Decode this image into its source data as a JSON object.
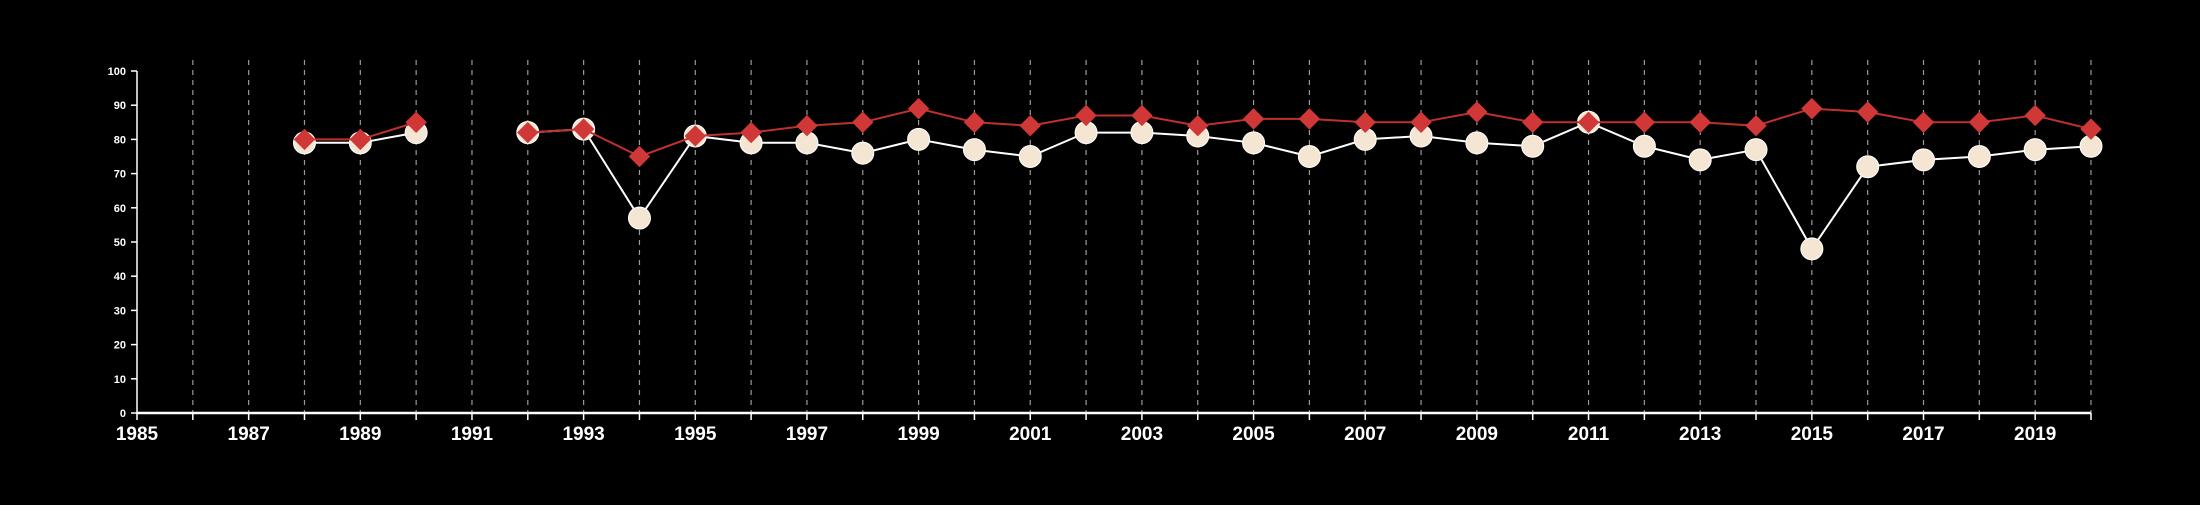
{
  "chart_data": {
    "type": "line",
    "title": "",
    "xlabel": "",
    "ylabel": "",
    "xlim": [
      1985,
      2020
    ],
    "ylim": [
      0,
      100
    ],
    "yticks": [
      0,
      10,
      20,
      30,
      40,
      50,
      60,
      70,
      80,
      90,
      100
    ],
    "xticks": [
      1985,
      1987,
      1989,
      1991,
      1993,
      1995,
      1997,
      1999,
      2001,
      2003,
      2005,
      2007,
      2009,
      2011,
      2013,
      2015,
      2017,
      2019
    ],
    "vertical_grid_years": [
      1986,
      1987,
      1988,
      1989,
      1990,
      1991,
      1992,
      1993,
      1994,
      1995,
      1996,
      1997,
      1998,
      1999,
      2000,
      2001,
      2002,
      2003,
      2004,
      2005,
      2006,
      2007,
      2008,
      2009,
      2010,
      2011,
      2012,
      2013,
      2014,
      2015,
      2016,
      2017,
      2018,
      2019,
      2020
    ],
    "grid": "vertical dashed",
    "legend": "none",
    "background": "#000000",
    "series": [
      {
        "marker": "circle",
        "color": "#f5e6d3",
        "line_color": "#ffffff",
        "segments": [
          [
            [
              1988,
              79
            ],
            [
              1989,
              79
            ],
            [
              1990,
              82
            ]
          ],
          [
            [
              1992,
              82
            ],
            [
              1993,
              83
            ],
            [
              1994,
              57
            ],
            [
              1995,
              81
            ],
            [
              1996,
              79
            ],
            [
              1997,
              79
            ],
            [
              1998,
              76
            ],
            [
              1999,
              80
            ],
            [
              2000,
              77
            ],
            [
              2001,
              75
            ],
            [
              2002,
              82
            ],
            [
              2003,
              82
            ],
            [
              2004,
              81
            ],
            [
              2005,
              79
            ],
            [
              2006,
              75
            ],
            [
              2007,
              80
            ],
            [
              2008,
              81
            ],
            [
              2009,
              79
            ],
            [
              2010,
              78
            ],
            [
              2011,
              85
            ],
            [
              2012,
              78
            ],
            [
              2013,
              74
            ],
            [
              2014,
              77
            ],
            [
              2015,
              48
            ],
            [
              2016,
              72
            ],
            [
              2017,
              74
            ],
            [
              2018,
              75
            ],
            [
              2019,
              77
            ],
            [
              2020,
              78
            ]
          ]
        ]
      },
      {
        "marker": "diamond",
        "color": "#d03838",
        "line_color": "#c0302c",
        "segments": [
          [
            [
              1988,
              80
            ],
            [
              1989,
              80
            ],
            [
              1990,
              85
            ]
          ],
          [
            [
              1992,
              82
            ],
            [
              1993,
              83
            ],
            [
              1994,
              75
            ],
            [
              1995,
              81
            ],
            [
              1996,
              82
            ],
            [
              1997,
              84
            ],
            [
              1998,
              85
            ],
            [
              1999,
              89
            ],
            [
              2000,
              85
            ],
            [
              2001,
              84
            ],
            [
              2002,
              87
            ],
            [
              2003,
              87
            ],
            [
              2004,
              84
            ],
            [
              2005,
              86
            ],
            [
              2006,
              86
            ],
            [
              2007,
              85
            ],
            [
              2008,
              85
            ],
            [
              2009,
              88
            ],
            [
              2010,
              85
            ],
            [
              2011,
              85
            ],
            [
              2012,
              85
            ],
            [
              2013,
              85
            ],
            [
              2014,
              84
            ],
            [
              2015,
              89
            ],
            [
              2016,
              88
            ],
            [
              2017,
              85
            ],
            [
              2018,
              85
            ],
            [
              2019,
              87
            ],
            [
              2020,
              83
            ]
          ]
        ]
      }
    ]
  }
}
